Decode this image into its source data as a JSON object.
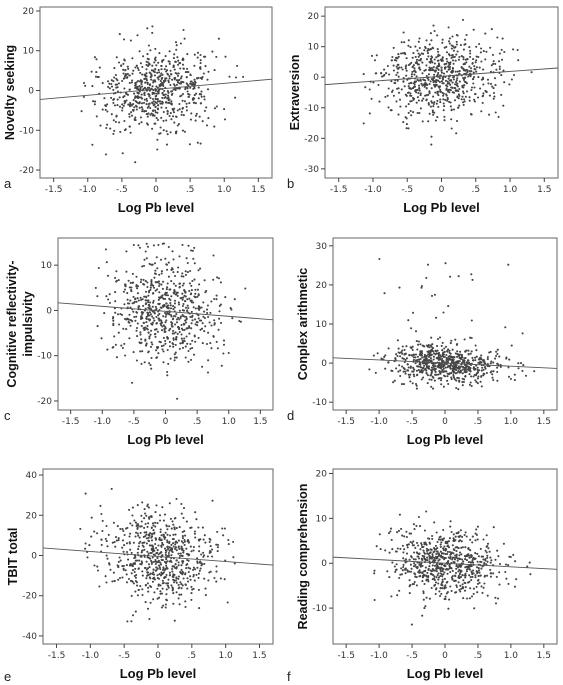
{
  "chart_data": [
    {
      "type": "scatter",
      "panel": "a",
      "xlabel": "Log Pb level",
      "ylabel": "Novelty seeking",
      "xlim": [
        -1.7,
        1.7
      ],
      "ylim": [
        -22,
        21
      ],
      "xticks": [
        "-1.5",
        "-1.0",
        "-.5",
        "0",
        ".5",
        "1.0",
        "1.5"
      ],
      "xtick_values": [
        -1.5,
        -1.0,
        -0.5,
        0,
        0.5,
        1.0,
        1.5
      ],
      "yticks": [
        "-20",
        "-10",
        "0",
        "10",
        "20"
      ],
      "ytick_values": [
        -20,
        -10,
        0,
        10,
        20
      ],
      "fit_line": {
        "intercept": 0.3,
        "slope": 1.5
      },
      "spread": {
        "x_sd": 0.42,
        "y_sd": 5.3,
        "n": 700
      },
      "grid": false
    },
    {
      "type": "scatter",
      "panel": "b",
      "xlabel": "Log Pb level",
      "ylabel": "Extraversion",
      "xlim": [
        -1.7,
        1.7
      ],
      "ylim": [
        -33,
        23
      ],
      "xticks": [
        "-1.5",
        "-1.0",
        "-.5",
        "0",
        ".5",
        "1.0",
        "1.5"
      ],
      "xtick_values": [
        -1.5,
        -1.0,
        -0.5,
        0,
        0.5,
        1.0,
        1.5
      ],
      "yticks": [
        "-30",
        "-20",
        "-10",
        "0",
        "10",
        "20"
      ],
      "ytick_values": [
        -30,
        -20,
        -10,
        0,
        10,
        20
      ],
      "fit_line": {
        "intercept": 0.3,
        "slope": 1.6
      },
      "spread": {
        "x_sd": 0.42,
        "y_sd": 6.5,
        "n": 700
      },
      "grid": false
    },
    {
      "type": "scatter",
      "panel": "c",
      "xlabel": "Log Pb level",
      "ylabel": "Cognitive reflectivity-impulsivity",
      "ylabel_lines": [
        "Cognitive reflectivity-",
        "impulsivity"
      ],
      "xlim": [
        -1.7,
        1.7
      ],
      "ylim": [
        -22,
        16
      ],
      "xticks": [
        "-1.5",
        "-1.0",
        "-.5",
        "0",
        ".5",
        "1.0",
        "1.5"
      ],
      "xtick_values": [
        -1.5,
        -1.0,
        -0.5,
        0,
        0.5,
        1.0,
        1.5
      ],
      "yticks": [
        "-20",
        "-10",
        "0",
        "10"
      ],
      "ytick_values": [
        -20,
        -10,
        0,
        10
      ],
      "fit_line": {
        "intercept": -0.2,
        "slope": -1.1
      },
      "spread": {
        "x_sd": 0.42,
        "y_sd": 5.8,
        "n": 700
      },
      "grid": false
    },
    {
      "type": "scatter",
      "panel": "d",
      "xlabel": "Log Pb level",
      "ylabel": "Conplex arithmetic",
      "xlim": [
        -1.7,
        1.7
      ],
      "ylim": [
        -12,
        32
      ],
      "xticks": [
        "-1.5",
        "-1.0",
        "-.5",
        "0",
        ".5",
        "1.0",
        "1.5"
      ],
      "xtick_values": [
        -1.5,
        -1.0,
        -0.5,
        0,
        0.5,
        1.0,
        1.5
      ],
      "yticks": [
        "-10",
        "0",
        "10",
        "20",
        "30"
      ],
      "ytick_values": [
        -10,
        0,
        10,
        20,
        30
      ],
      "fit_line": {
        "intercept": 0.0,
        "slope": -0.8
      },
      "spread": {
        "x_sd": 0.42,
        "y_sd": 2.6,
        "n": 700
      },
      "grid": false
    },
    {
      "type": "scatter",
      "panel": "e",
      "xlabel": "Log Pb level",
      "ylabel": "TBIT total",
      "xlim": [
        -1.7,
        1.7
      ],
      "ylim": [
        -44,
        43
      ],
      "xticks": [
        "-1.5",
        "-1.0",
        "-.5",
        "0",
        ".5",
        "1.0",
        "1.5"
      ],
      "xtick_values": [
        -1.5,
        -1.0,
        -0.5,
        0,
        0.5,
        1.0,
        1.5
      ],
      "yticks": [
        "-40",
        "-20",
        "0",
        "20",
        "40"
      ],
      "ytick_values": [
        -40,
        -20,
        0,
        20,
        40
      ],
      "fit_line": {
        "intercept": -0.5,
        "slope": -2.5
      },
      "spread": {
        "x_sd": 0.42,
        "y_sd": 11.5,
        "n": 700
      },
      "grid": false
    },
    {
      "type": "scatter",
      "panel": "f",
      "xlabel": "Log Pb level",
      "ylabel": "Reading comprehension",
      "xlim": [
        -1.7,
        1.7
      ],
      "ylim": [
        -18,
        21
      ],
      "xticks": [
        "-1.5",
        "-1.0",
        "-.5",
        "0",
        ".5",
        "1.0",
        "1.5"
      ],
      "xtick_values": [
        -1.5,
        -1.0,
        -0.5,
        0,
        0.5,
        1.0,
        1.5
      ],
      "yticks": [
        "-10",
        "0",
        "10",
        "20"
      ],
      "ytick_values": [
        -10,
        0,
        10,
        20
      ],
      "fit_line": {
        "intercept": 0.0,
        "slope": -0.8
      },
      "spread": {
        "x_sd": 0.42,
        "y_sd": 3.8,
        "n": 700
      },
      "grid": false
    }
  ]
}
